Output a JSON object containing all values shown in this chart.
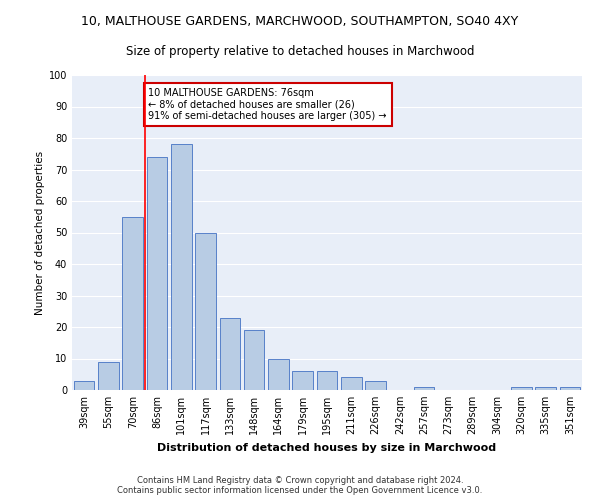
{
  "title": "10, MALTHOUSE GARDENS, MARCHWOOD, SOUTHAMPTON, SO40 4XY",
  "subtitle": "Size of property relative to detached houses in Marchwood",
  "xlabel": "Distribution of detached houses by size in Marchwood",
  "ylabel": "Number of detached properties",
  "categories": [
    "39sqm",
    "55sqm",
    "70sqm",
    "86sqm",
    "101sqm",
    "117sqm",
    "133sqm",
    "148sqm",
    "164sqm",
    "179sqm",
    "195sqm",
    "211sqm",
    "226sqm",
    "242sqm",
    "257sqm",
    "273sqm",
    "289sqm",
    "304sqm",
    "320sqm",
    "335sqm",
    "351sqm"
  ],
  "values": [
    3,
    9,
    55,
    74,
    78,
    50,
    23,
    19,
    10,
    6,
    6,
    4,
    3,
    0,
    1,
    0,
    0,
    0,
    1,
    1,
    1
  ],
  "bar_color": "#b8cce4",
  "bar_edge_color": "#4472c4",
  "red_line_x": 2.5,
  "annotation_text": "10 MALTHOUSE GARDENS: 76sqm\n← 8% of detached houses are smaller (26)\n91% of semi-detached houses are larger (305) →",
  "annotation_box_color": "#ffffff",
  "annotation_box_edge": "#cc0000",
  "ylim": [
    0,
    100
  ],
  "yticks": [
    0,
    10,
    20,
    30,
    40,
    50,
    60,
    70,
    80,
    90,
    100
  ],
  "background_color": "#e8eef8",
  "grid_color": "#ffffff",
  "footer_line1": "Contains HM Land Registry data © Crown copyright and database right 2024.",
  "footer_line2": "Contains public sector information licensed under the Open Government Licence v3.0.",
  "title_fontsize": 9,
  "subtitle_fontsize": 8.5,
  "xlabel_fontsize": 8,
  "ylabel_fontsize": 7.5,
  "tick_fontsize": 7,
  "annot_fontsize": 7,
  "footer_fontsize": 6
}
